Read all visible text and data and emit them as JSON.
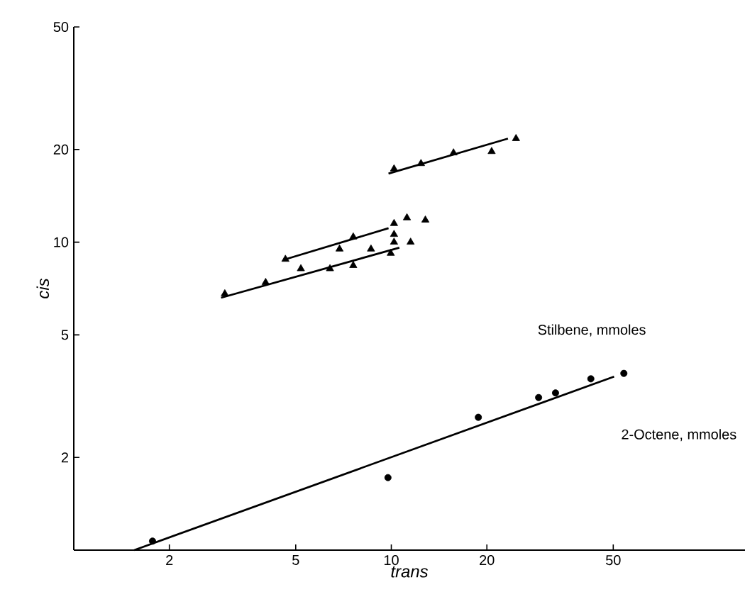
{
  "chart_data": {
    "type": "scatter",
    "xlabel": "trans",
    "ylabel": "cis",
    "log": "xy",
    "xlim": [
      1,
      130
    ],
    "ylim": [
      1,
      50
    ],
    "xticks": [
      2,
      5,
      10,
      20,
      50
    ],
    "yticks": [
      2,
      5,
      10,
      20,
      50
    ],
    "grid": false,
    "series": [
      {
        "marker": "triangle",
        "color": "#000000",
        "x": [
          10.2,
          12.4,
          15.7,
          20.7,
          24.7,
          4.64,
          6.87,
          7.59,
          10.2,
          11.2,
          12.8,
          10.2,
          2.99,
          4.02,
          5.19,
          6.41,
          7.59,
          8.63,
          9.96,
          10.2,
          11.5
        ],
        "values": [
          17.3,
          18.0,
          19.5,
          19.7,
          21.7,
          8.8,
          9.5,
          10.4,
          11.5,
          12.0,
          11.8,
          10.6,
          6.8,
          7.4,
          8.2,
          8.2,
          8.4,
          9.5,
          9.2,
          10.0,
          10.0
        ]
      },
      {
        "type": "line",
        "marker": "none",
        "line_style": "solid",
        "color": "#000000",
        "x": [
          9.8,
          23.3
        ],
        "values": [
          16.7,
          21.7
        ]
      },
      {
        "type": "line",
        "marker": "none",
        "line_style": "solid",
        "color": "#000000",
        "x": [
          4.64,
          9.8
        ],
        "values": [
          8.8,
          11.1
        ]
      },
      {
        "type": "line",
        "marker": "none",
        "line_style": "solid",
        "color": "#000000",
        "x": [
          2.91,
          10.6
        ],
        "values": [
          6.6,
          9.6
        ]
      },
      {
        "marker": "circle",
        "color": "#000000",
        "x": [
          1.77,
          9.76,
          18.8,
          29.1,
          32.9,
          42.5,
          54
        ],
        "values": [
          1.07,
          1.72,
          2.7,
          3.13,
          3.24,
          3.6,
          3.75
        ]
      },
      {
        "type": "line",
        "marker": "none",
        "line_style": "solid",
        "color": "#000000",
        "x": [
          1.55,
          50.3
        ],
        "values": [
          1.0,
          3.66
        ]
      }
    ],
    "annotations": [
      "Stilbene,  mmoles",
      "2-Octene,  mmoles"
    ]
  }
}
